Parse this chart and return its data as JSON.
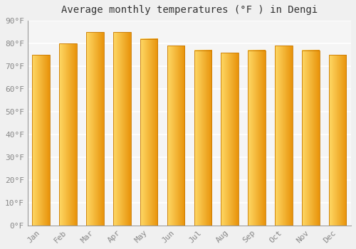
{
  "title": "Average monthly temperatures (°F ) in Dengi",
  "months": [
    "Jan",
    "Feb",
    "Mar",
    "Apr",
    "May",
    "Jun",
    "Jul",
    "Aug",
    "Sep",
    "Oct",
    "Nov",
    "Dec"
  ],
  "values": [
    75,
    80,
    85,
    85,
    82,
    79,
    77,
    76,
    77,
    79,
    77,
    75
  ],
  "bar_color_light": "#FFD966",
  "bar_color_dark": "#E8930A",
  "background_color": "#f0f0f0",
  "plot_bg_color": "#f5f5f5",
  "ylim": [
    0,
    90
  ],
  "yticks": [
    0,
    10,
    20,
    30,
    40,
    50,
    60,
    70,
    80,
    90
  ],
  "ytick_labels": [
    "0°F",
    "10°F",
    "20°F",
    "30°F",
    "40°F",
    "50°F",
    "60°F",
    "70°F",
    "80°F",
    "90°F"
  ],
  "grid_color": "#ffffff",
  "title_fontsize": 10,
  "tick_fontsize": 8,
  "tick_color": "#888888",
  "font_family": "monospace",
  "bar_width": 0.65
}
